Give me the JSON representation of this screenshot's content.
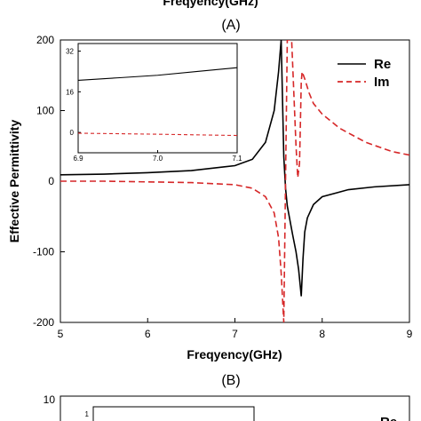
{
  "figure": {
    "top_cut_label": "Freqyency(GHz)",
    "panel_a": "(A)",
    "panel_b": "(B)",
    "panel_b_tick_top": "10",
    "panel_b_inset_tick": "1",
    "panel_b_legend_partial": "Re"
  },
  "chart_data": [
    {
      "type": "line",
      "xlabel": "Freqyency(GHz)",
      "ylabel": "Effective Permittivity",
      "xlim": [
        5,
        9
      ],
      "ylim": [
        -200,
        200
      ],
      "xticks": [
        5,
        6,
        7,
        8,
        9
      ],
      "yticks": [
        -200,
        -100,
        0,
        100,
        200
      ],
      "legend_position": "top-right",
      "series": [
        {
          "name": "Re",
          "style": "solid",
          "color": "#000000",
          "x": [
            5.0,
            5.5,
            6.0,
            6.5,
            7.0,
            7.2,
            7.35,
            7.45,
            7.5,
            7.53,
            7.56,
            7.58,
            7.6,
            7.63,
            7.66,
            7.7,
            7.73,
            7.75,
            7.76,
            7.78,
            7.8,
            7.83,
            7.9,
            8.0,
            8.3,
            8.6,
            9.0
          ],
          "y": [
            9,
            10,
            12,
            15,
            22,
            31,
            55,
            100,
            155,
            200,
            35,
            -10,
            -35,
            -55,
            -75,
            -100,
            -125,
            -150,
            -163,
            -110,
            -72,
            -52,
            -33,
            -22,
            -12,
            -8,
            -5
          ]
        },
        {
          "name": "Im",
          "style": "dashed",
          "color": "#d62728",
          "x": [
            5.0,
            5.5,
            6.0,
            6.5,
            7.0,
            7.2,
            7.35,
            7.45,
            7.5,
            7.53,
            7.56,
            7.6,
            7.65,
            7.7,
            7.72,
            7.74,
            7.75,
            7.76,
            7.77,
            7.8,
            7.85,
            7.9,
            8.0,
            8.2,
            8.5,
            8.8,
            9.0
          ],
          "y": [
            0,
            0,
            -1,
            -2,
            -5,
            -10,
            -22,
            -45,
            -80,
            -130,
            -200,
            200,
            200,
            50,
            5,
            25,
            80,
            140,
            155,
            145,
            125,
            110,
            95,
            75,
            55,
            42,
            37
          ]
        }
      ]
    },
    {
      "type": "line",
      "inset": true,
      "xlim": [
        6.9,
        7.1
      ],
      "ylim": [
        -8,
        35
      ],
      "xticks": [
        6.9,
        7.0,
        7.1
      ],
      "yticks": [
        0,
        16,
        32
      ],
      "series": [
        {
          "name": "Re",
          "style": "solid",
          "color": "#000000",
          "x": [
            6.9,
            6.95,
            7.0,
            7.05,
            7.1
          ],
          "y": [
            20.5,
            21.5,
            22.5,
            24.0,
            25.5
          ]
        },
        {
          "name": "Im",
          "style": "dashed",
          "color": "#d62728",
          "x": [
            6.9,
            7.0,
            7.1
          ],
          "y": [
            -0.3,
            -0.7,
            -1.2
          ]
        }
      ]
    }
  ]
}
